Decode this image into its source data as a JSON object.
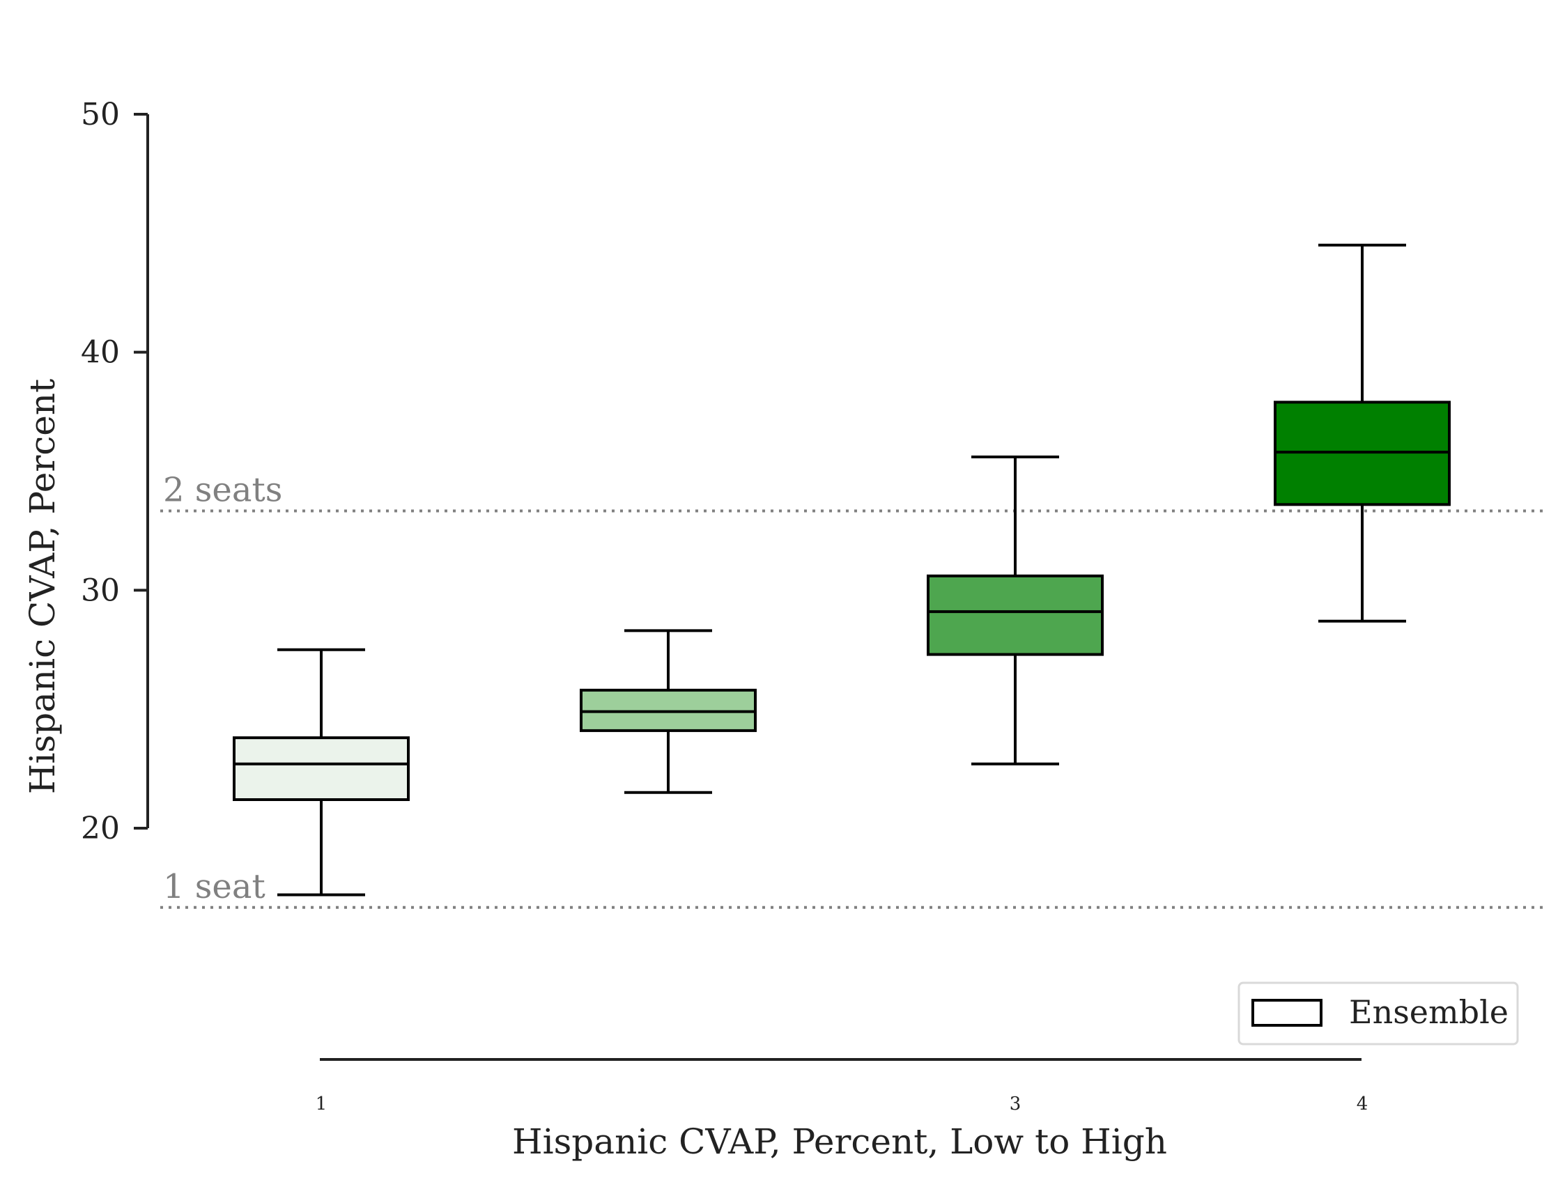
{
  "chart_data": {
    "type": "box",
    "title": "",
    "xlabel": "Hispanic CVAP, Percent, Low to High",
    "ylabel": "Hispanic CVAP, Percent",
    "ylim": [
      14,
      52
    ],
    "yticks": [
      20,
      30,
      40,
      50
    ],
    "xticks": [
      1,
      3,
      4
    ],
    "legend": {
      "label": "Ensemble",
      "position": "bottom-right"
    },
    "reference_lines": [
      {
        "label": "2 seats",
        "value": 33.33,
        "color": "#808080"
      },
      {
        "label": "1 seat",
        "value": 16.67,
        "color": "#808080"
      }
    ],
    "boxes": [
      {
        "position": 1,
        "whisker_low": 17.2,
        "q1": 21.2,
        "median": 22.7,
        "q3": 23.8,
        "whisker_high": 27.5,
        "color": "#ebf3eb"
      },
      {
        "position": 2,
        "whisker_low": 21.5,
        "q1": 24.1,
        "median": 24.9,
        "q3": 25.8,
        "whisker_high": 28.3,
        "color": "#9dcf9b"
      },
      {
        "position": 3,
        "whisker_low": 22.7,
        "q1": 27.3,
        "median": 29.1,
        "q3": 30.6,
        "whisker_high": 35.6,
        "color": "#4ea64f"
      },
      {
        "position": 4,
        "whisker_low": 28.7,
        "q1": 33.6,
        "median": 35.8,
        "q3": 37.9,
        "whisker_high": 44.5,
        "color": "#008000"
      }
    ]
  }
}
